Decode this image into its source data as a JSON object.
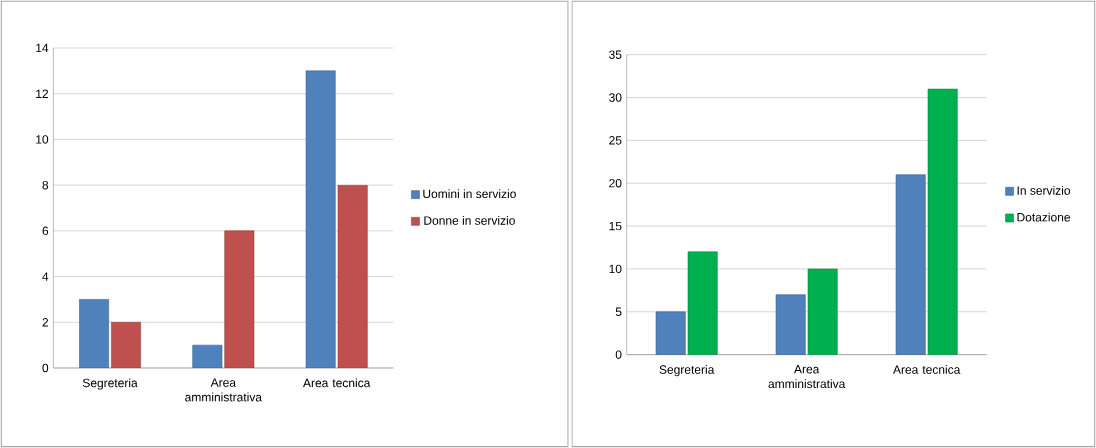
{
  "chart_data": [
    {
      "type": "bar",
      "categories": [
        "Segreteria",
        "Area amministrativa",
        "Area tecnica"
      ],
      "series": [
        {
          "name": "Uomini in servizio",
          "color": "#4f81bd",
          "values": [
            3,
            1,
            13
          ]
        },
        {
          "name": "Donne in servizio",
          "color": "#c0504d",
          "values": [
            2,
            6,
            8
          ]
        }
      ],
      "ylim": [
        0,
        14
      ],
      "yticks": [
        0,
        2,
        4,
        6,
        8,
        10,
        12,
        14
      ],
      "grid": "y",
      "legend": "right"
    },
    {
      "type": "bar",
      "categories": [
        "Segreteria",
        "Area amministrativa",
        "Area tecnica"
      ],
      "series": [
        {
          "name": "In servizio",
          "color": "#4f81bd",
          "values": [
            5,
            7,
            21
          ]
        },
        {
          "name": "Dotazione",
          "color": "#00b050",
          "values": [
            12,
            10,
            31
          ]
        }
      ],
      "ylim": [
        0,
        35
      ],
      "yticks": [
        0,
        5,
        10,
        15,
        20,
        25,
        30,
        35
      ],
      "grid": "y",
      "legend": "right"
    }
  ]
}
